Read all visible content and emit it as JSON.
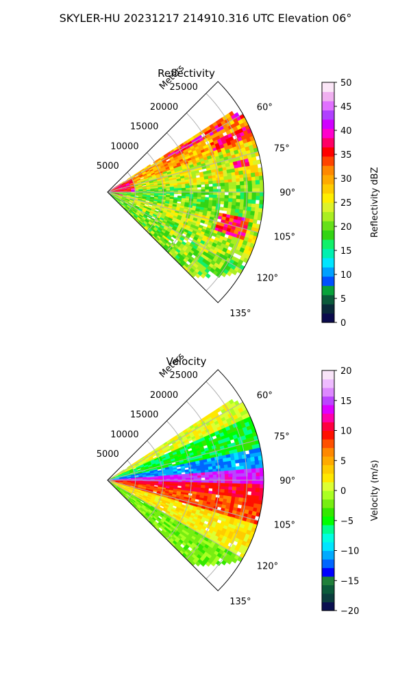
{
  "figure": {
    "suptitle": "SKYLER-HU  20231217  214910.316 UTC Elevation 06°"
  },
  "colors": {
    "reflectivity_cmap": [
      "#0b0b4d",
      "#0a2a3a",
      "#0b5a3a",
      "#08a23a",
      "#0050ff",
      "#00a0ff",
      "#00e5ff",
      "#00f0b0",
      "#11f06a",
      "#33d414",
      "#66e01a",
      "#aaee22",
      "#ddf22a",
      "#ffee00",
      "#ffcc00",
      "#ffaa00",
      "#ff8800",
      "#ff4400",
      "#ff0000",
      "#ff0066",
      "#ff00cc",
      "#d000ff",
      "#b040ff",
      "#e070ff",
      "#f0b0f0",
      "#fbe6f7"
    ],
    "velocity_cmap": [
      "#0a1050",
      "#0b3d3d",
      "#0b5a3a",
      "#1f7f3a",
      "#0000ff",
      "#0066ff",
      "#00aaff",
      "#00e5ff",
      "#00ffe0",
      "#00ff90",
      "#00ff00",
      "#33e800",
      "#77ee11",
      "#aaff22",
      "#ddff33",
      "#ffe800",
      "#ffcc00",
      "#ffaa00",
      "#ff8800",
      "#ff5000",
      "#ff1000",
      "#ff0040",
      "#ff00aa",
      "#dd00ff",
      "#bb44ff",
      "#dd88ff",
      "#eebbff",
      "#f8e4f8"
    ]
  },
  "chart_data": [
    {
      "type": "heatmap",
      "projection": "polar-sector",
      "title": "Reflectivity",
      "radial_label": "Meters",
      "radial_ticks": [
        5000,
        10000,
        15000,
        20000,
        25000
      ],
      "radial_tick_labels": [
        "5000",
        "10000",
        "15000",
        "20000",
        "25000"
      ],
      "angle_ticks": [
        60,
        75,
        90,
        105,
        120,
        135
      ],
      "angle_tick_labels": [
        "60°",
        "75°",
        "90°",
        "105°",
        "120°",
        "135°"
      ],
      "angle_range": [
        45,
        135
      ],
      "range_limit": 28000,
      "grid": true,
      "colorbar": {
        "label": "Reflectivity dBZ",
        "range": [
          0,
          50
        ],
        "ticks": [
          "0",
          "5",
          "10",
          "15",
          "20",
          "25",
          "30",
          "35",
          "40",
          "45",
          "50"
        ]
      },
      "data_extent_by_azimuth": [
        [
          57,
          26000
        ],
        [
          60,
          28000
        ],
        [
          75,
          28000
        ],
        [
          90,
          28000
        ],
        [
          105,
          28000
        ],
        [
          120,
          28000
        ],
        [
          130,
          24000
        ],
        [
          135,
          21000
        ]
      ],
      "field_features": [
        {
          "azimuth": [
            57,
            70
          ],
          "range": [
            2000,
            26000
          ],
          "value": 30
        },
        {
          "azimuth": [
            58,
            62
          ],
          "range": [
            12000,
            24000
          ],
          "value": 37
        },
        {
          "azimuth": [
            64,
            69
          ],
          "range": [
            20000,
            26000
          ],
          "value": 36
        },
        {
          "azimuth": [
            70,
            87
          ],
          "range": [
            2000,
            28000
          ],
          "value": 25
        },
        {
          "azimuth": [
            76,
            80
          ],
          "range": [
            23000,
            26000
          ],
          "value": 36
        },
        {
          "azimuth": [
            85,
            100
          ],
          "range": [
            3000,
            28000
          ],
          "value": 20
        },
        {
          "azimuth": [
            100,
            115
          ],
          "range": [
            3000,
            28000
          ],
          "value": 23
        },
        {
          "azimuth": [
            101,
            109
          ],
          "range": [
            20000,
            26000
          ],
          "value": 36
        },
        {
          "azimuth": [
            115,
            135
          ],
          "range": [
            2000,
            24000
          ],
          "value": 21
        },
        {
          "azimuth": [
            58,
            90
          ],
          "range": [
            0,
            5000
          ],
          "value": 37
        }
      ]
    },
    {
      "type": "heatmap",
      "projection": "polar-sector",
      "title": "Velocity",
      "radial_label": "Meters",
      "radial_ticks": [
        5000,
        10000,
        15000,
        20000,
        25000
      ],
      "radial_tick_labels": [
        "5000",
        "10000",
        "15000",
        "20000",
        "25000"
      ],
      "angle_ticks": [
        60,
        75,
        90,
        105,
        120,
        135
      ],
      "angle_tick_labels": [
        "60°",
        "75°",
        "90°",
        "105°",
        "120°",
        "135°"
      ],
      "angle_range": [
        45,
        135
      ],
      "range_limit": 28000,
      "grid": true,
      "colorbar": {
        "label": "Velocity (m/s)",
        "range": [
          -20,
          20
        ],
        "ticks": [
          "−20",
          "−15",
          "−10",
          "−5",
          "0",
          "5",
          "10",
          "15",
          "20"
        ]
      },
      "data_extent_by_azimuth": [
        [
          57,
          26000
        ],
        [
          60,
          28000
        ],
        [
          75,
          28000
        ],
        [
          90,
          28000
        ],
        [
          105,
          28000
        ],
        [
          120,
          28000
        ],
        [
          130,
          24000
        ],
        [
          135,
          21000
        ]
      ],
      "field_features": [
        {
          "azimuth": [
            57,
            66
          ],
          "range": [
            2000,
            28000
          ],
          "value": 1
        },
        {
          "azimuth": [
            66,
            78
          ],
          "range": [
            2000,
            28000
          ],
          "value": -5
        },
        {
          "azimuth": [
            78,
            86
          ],
          "range": [
            3000,
            28000
          ],
          "value": -11
        },
        {
          "azimuth": [
            86,
            92
          ],
          "range": [
            2000,
            28000
          ],
          "value": 14
        },
        {
          "azimuth": [
            92,
            98
          ],
          "range": [
            1000,
            28000
          ],
          "value": 10
        },
        {
          "azimuth": [
            98,
            106
          ],
          "range": [
            1000,
            28000
          ],
          "value": 8
        },
        {
          "azimuth": [
            106,
            120
          ],
          "range": [
            1000,
            28000
          ],
          "value": 2
        },
        {
          "azimuth": [
            120,
            135
          ],
          "range": [
            2000,
            24000
          ],
          "value": -2
        }
      ]
    }
  ]
}
